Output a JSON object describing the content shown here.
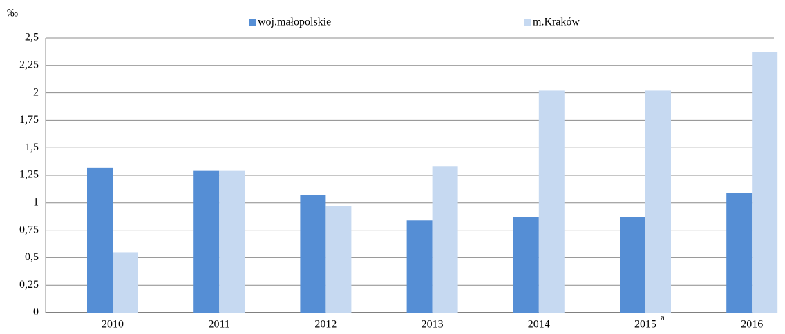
{
  "chart_data": {
    "type": "bar",
    "unit_label": "‰",
    "categories": [
      "2010",
      "2011",
      "2012",
      "2013",
      "2014",
      "2015",
      "2016"
    ],
    "annotations": [
      {
        "text": "a",
        "category": "2015"
      }
    ],
    "series": [
      {
        "name": "woj.małopolskie",
        "color": "#558ed5",
        "values": [
          1.32,
          1.29,
          1.07,
          0.84,
          0.87,
          0.87,
          1.09
        ]
      },
      {
        "name": "m.Kraków",
        "color": "#c6d9f1",
        "values": [
          0.55,
          1.29,
          0.97,
          1.33,
          2.02,
          2.02,
          2.37
        ]
      }
    ],
    "ylim": [
      0,
      2.5
    ],
    "yticks": [
      0,
      {
        "value": 0.25,
        "label": "0,25"
      },
      {
        "value": 0.5,
        "label": "0,5"
      },
      {
        "value": 0.75,
        "label": "0,75"
      },
      1,
      {
        "value": 1.25,
        "label": "1,25"
      },
      {
        "value": 1.5,
        "label": "1,5"
      },
      {
        "value": 1.75,
        "label": "1,75"
      },
      2,
      {
        "value": 2.25,
        "label": "2,25"
      },
      {
        "value": 2.5,
        "label": "2,5"
      }
    ],
    "grid": true
  }
}
